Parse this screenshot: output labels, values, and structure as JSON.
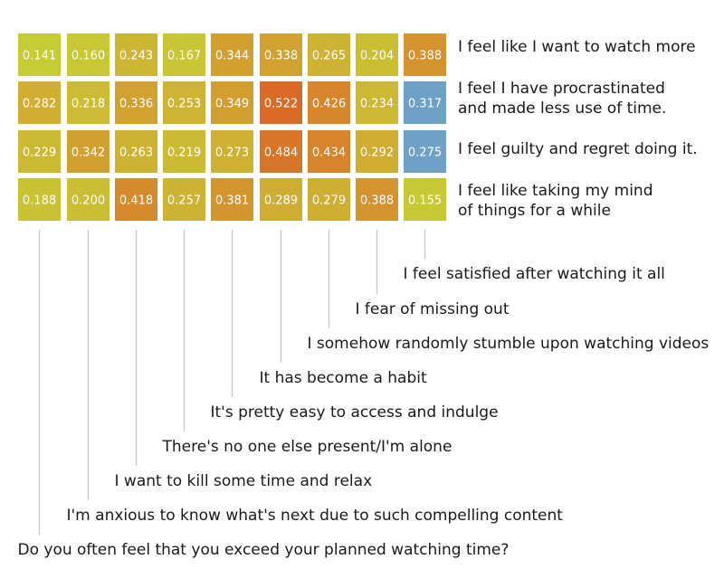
{
  "chart_data": {
    "type": "heatmap",
    "title": "",
    "row_labels": [
      [
        "I feel like I want to watch more"
      ],
      [
        "I feel I have procrastinated",
        "and made less use of time."
      ],
      [
        "I feel guilty and regret doing it."
      ],
      [
        "I feel like taking my mind",
        "of things for a while"
      ]
    ],
    "column_labels": [
      "Do you often feel that you exceed your planned watching time?",
      "I'm anxious to know what's next due to such compelling content",
      "I want to kill some time and relax",
      "There's no one else present/I'm alone",
      "It's pretty easy to access and indulge",
      "It has become a habit",
      "I somehow randomly stumble upon watching videos",
      "I fear of missing out",
      "I feel satisfied after watching it all"
    ],
    "values": [
      [
        0.141,
        0.16,
        0.243,
        0.167,
        0.344,
        0.338,
        0.265,
        0.204,
        0.388
      ],
      [
        0.282,
        0.218,
        0.336,
        0.253,
        0.349,
        0.522,
        0.426,
        0.234,
        0.317
      ],
      [
        0.229,
        0.342,
        0.263,
        0.219,
        0.273,
        0.484,
        0.434,
        0.292,
        0.275
      ],
      [
        0.188,
        0.2,
        0.418,
        0.257,
        0.381,
        0.289,
        0.279,
        0.388,
        0.155
      ]
    ],
    "value_labels": [
      [
        "0.141",
        "0.160",
        "0.243",
        "0.167",
        "0.344",
        "0.338",
        "0.265",
        "0.204",
        "0.388"
      ],
      [
        "0.282",
        "0.218",
        "0.336",
        "0.253",
        "0.349",
        "0.522",
        "0.426",
        "0.234",
        "0.317"
      ],
      [
        "0.229",
        "0.342",
        "0.263",
        "0.219",
        "0.273",
        "0.484",
        "0.434",
        "0.292",
        "0.275"
      ],
      [
        "0.188",
        "0.200",
        "0.418",
        "0.257",
        "0.381",
        "0.289",
        "0.279",
        "0.388",
        "0.155"
      ]
    ],
    "special_cells": [
      [
        1,
        8
      ],
      [
        2,
        8
      ]
    ],
    "colors": {
      "low": "#c6cc34",
      "mid": "#d2a431",
      "high": "#d96b26",
      "special": "#6fa0c6",
      "guide_line": "#c8c8c8",
      "cell_text": "#ffffff",
      "label_text": "#1a1a1a"
    }
  }
}
